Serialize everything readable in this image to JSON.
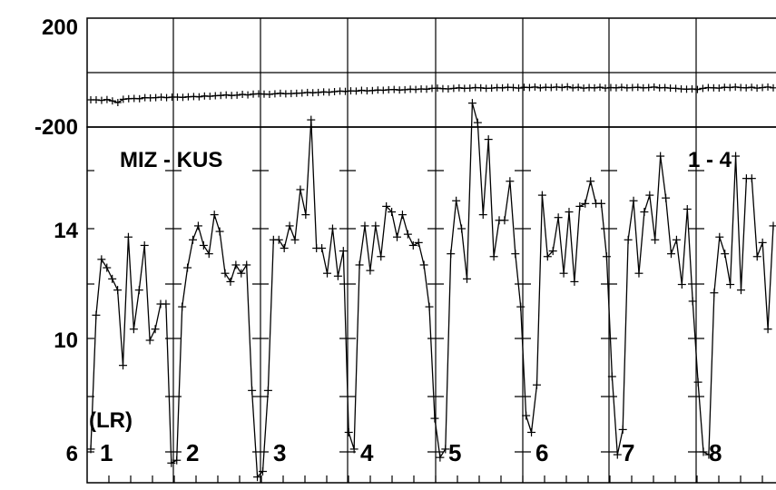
{
  "chart_data": [
    {
      "type": "line",
      "title": "",
      "xlabel": "",
      "ylabel": "",
      "ylim": [
        -200,
        200
      ],
      "yticks": [
        "200",
        "-200"
      ],
      "grid": true,
      "series": [
        {
          "values": [
            -100,
            -100,
            -102,
            -99,
            -104,
            -110,
            -98,
            -96,
            -95,
            -96,
            -92,
            -93,
            -92,
            -90,
            -92,
            -90,
            -90,
            -91,
            -89,
            -88,
            -89,
            -86,
            -87,
            -85,
            -84,
            -82,
            -84,
            -83,
            -80,
            -82,
            -79,
            -78,
            -79,
            -80,
            -78,
            -76,
            -78,
            -77,
            -76,
            -75,
            -73,
            -74,
            -73,
            -71,
            -72,
            -70,
            -68,
            -69,
            -67,
            -68,
            -65,
            -67,
            -66,
            -64,
            -65,
            -63,
            -62,
            -64,
            -63,
            -61,
            -62,
            -60,
            -61,
            -58,
            -57,
            -59,
            -60,
            -58,
            -56,
            -58,
            -57,
            -55,
            -56,
            -58,
            -57,
            -55,
            -56,
            -54,
            -55,
            -57,
            -54,
            -55,
            -53,
            -56,
            -54,
            -55,
            -53,
            -55,
            -52,
            -56,
            -54,
            -57,
            -55,
            -56,
            -54,
            -57,
            -55,
            -56,
            -54,
            -56,
            -55,
            -54,
            -56,
            -55,
            -53,
            -56,
            -55,
            -57,
            -58,
            -60,
            -61,
            -60,
            -62,
            -58,
            -55,
            -56,
            -57,
            -54,
            -55,
            -53,
            -55,
            -56,
            -54,
            -57,
            -55,
            -53,
            -56
          ]
        }
      ]
    },
    {
      "type": "line",
      "title": "",
      "xlabel": "",
      "ylabel": "",
      "ylim": [
        5,
        21
      ],
      "yticks": [
        "14",
        "10",
        "6"
      ],
      "grid": true,
      "annotations": {
        "station_pair": "MIZ - KUS",
        "component": "1 - 4",
        "mode": "(LR)"
      },
      "segment_labels": [
        "1",
        "2",
        "3",
        "4",
        "5",
        "6",
        "7",
        "8"
      ],
      "series": [
        {
          "values": [
            6.1,
            10.9,
            12.9,
            12.6,
            12.2,
            11.8,
            9.1,
            13.7,
            10.4,
            11.8,
            13.4,
            10.0,
            10.4,
            11.3,
            11.3,
            5.6,
            5.7,
            11.2,
            12.6,
            13.6,
            14.1,
            13.4,
            13.1,
            14.5,
            13.9,
            12.4,
            12.1,
            12.7,
            12.4,
            12.7,
            8.2,
            5.1,
            5.3,
            8.2,
            13.6,
            13.6,
            13.3,
            14.1,
            13.6,
            15.4,
            14.5,
            17.9,
            13.3,
            13.3,
            12.4,
            14.0,
            12.3,
            13.2,
            6.7,
            6.1,
            12.7,
            14.1,
            12.5,
            14.1,
            13.0,
            14.8,
            14.6,
            13.7,
            14.5,
            13.8,
            13.4,
            13.5,
            12.7,
            11.2,
            7.2,
            5.8,
            6.1,
            13.1,
            15.0,
            14.0,
            12.2,
            18.5,
            17.8,
            14.5,
            17.2,
            13.0,
            14.3,
            14.3,
            15.7,
            13.1,
            11.2,
            7.3,
            6.7,
            8.4,
            15.2,
            13.0,
            13.2,
            14.4,
            12.4,
            14.6,
            12.1,
            14.8,
            14.9,
            15.7,
            14.9,
            14.9,
            13.0,
            8.7,
            5.9,
            6.8,
            13.6,
            15.0,
            12.4,
            14.6,
            15.2,
            13.6,
            16.6,
            15.1,
            13.1,
            13.6,
            12.0,
            14.7,
            11.4,
            8.5,
            6.0,
            5.9,
            11.7,
            13.7,
            13.1,
            12.0,
            16.6,
            11.8,
            15.8,
            15.8,
            13.0,
            13.5,
            10.4,
            14.1
          ]
        }
      ]
    }
  ]
}
